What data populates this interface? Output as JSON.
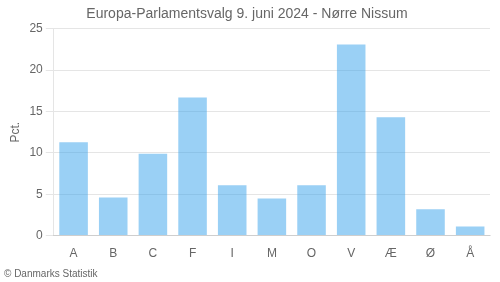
{
  "chart_data": {
    "type": "bar",
    "title": "Europa-Parlamentsvalg 9. juni 2024 - Nørre Nissum",
    "ylabel": "Pct.",
    "footer": "© Danmarks Statistik",
    "categories": [
      "A",
      "B",
      "C",
      "F",
      "I",
      "M",
      "O",
      "V",
      "Æ",
      "Ø",
      "Å"
    ],
    "values": [
      11.3,
      4.6,
      9.9,
      16.7,
      6.1,
      4.5,
      6.1,
      23.1,
      14.3,
      3.2,
      1.1
    ],
    "ylim": [
      0,
      25
    ],
    "yticks": [
      0,
      5,
      10,
      15,
      20,
      25
    ],
    "grid": true
  }
}
